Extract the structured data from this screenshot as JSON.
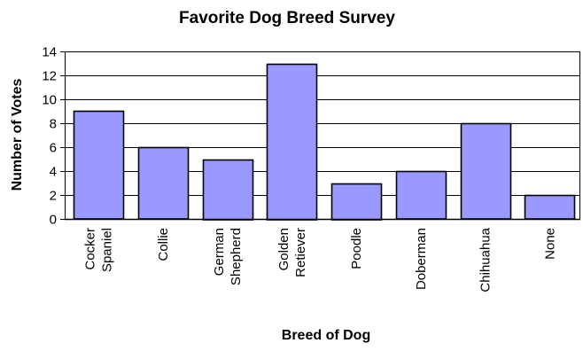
{
  "chart_data": {
    "type": "bar",
    "title": "Favorite Dog Breed Survey",
    "xlabel": "Breed of Dog",
    "ylabel": "Number of Votes",
    "ylim": [
      0,
      14
    ],
    "yticks": [
      "0",
      "2",
      "4",
      "6",
      "8",
      "10",
      "12",
      "14"
    ],
    "grid": true,
    "legend": "none",
    "categories": [
      [
        "Cocker",
        "Spaniel"
      ],
      [
        "Collie"
      ],
      [
        "German",
        "Shepherd"
      ],
      [
        "Golden",
        "Retiever"
      ],
      [
        "Poodle"
      ],
      [
        "Doberman"
      ],
      [
        "Chihuahua"
      ],
      [
        "None"
      ]
    ],
    "values": [
      9,
      6,
      5,
      13,
      3,
      4,
      8,
      2
    ],
    "colors": {
      "bar_fill": "#9999ff",
      "bar_stroke": "#000000",
      "grid": "#000000",
      "background": "#ffffff"
    }
  }
}
